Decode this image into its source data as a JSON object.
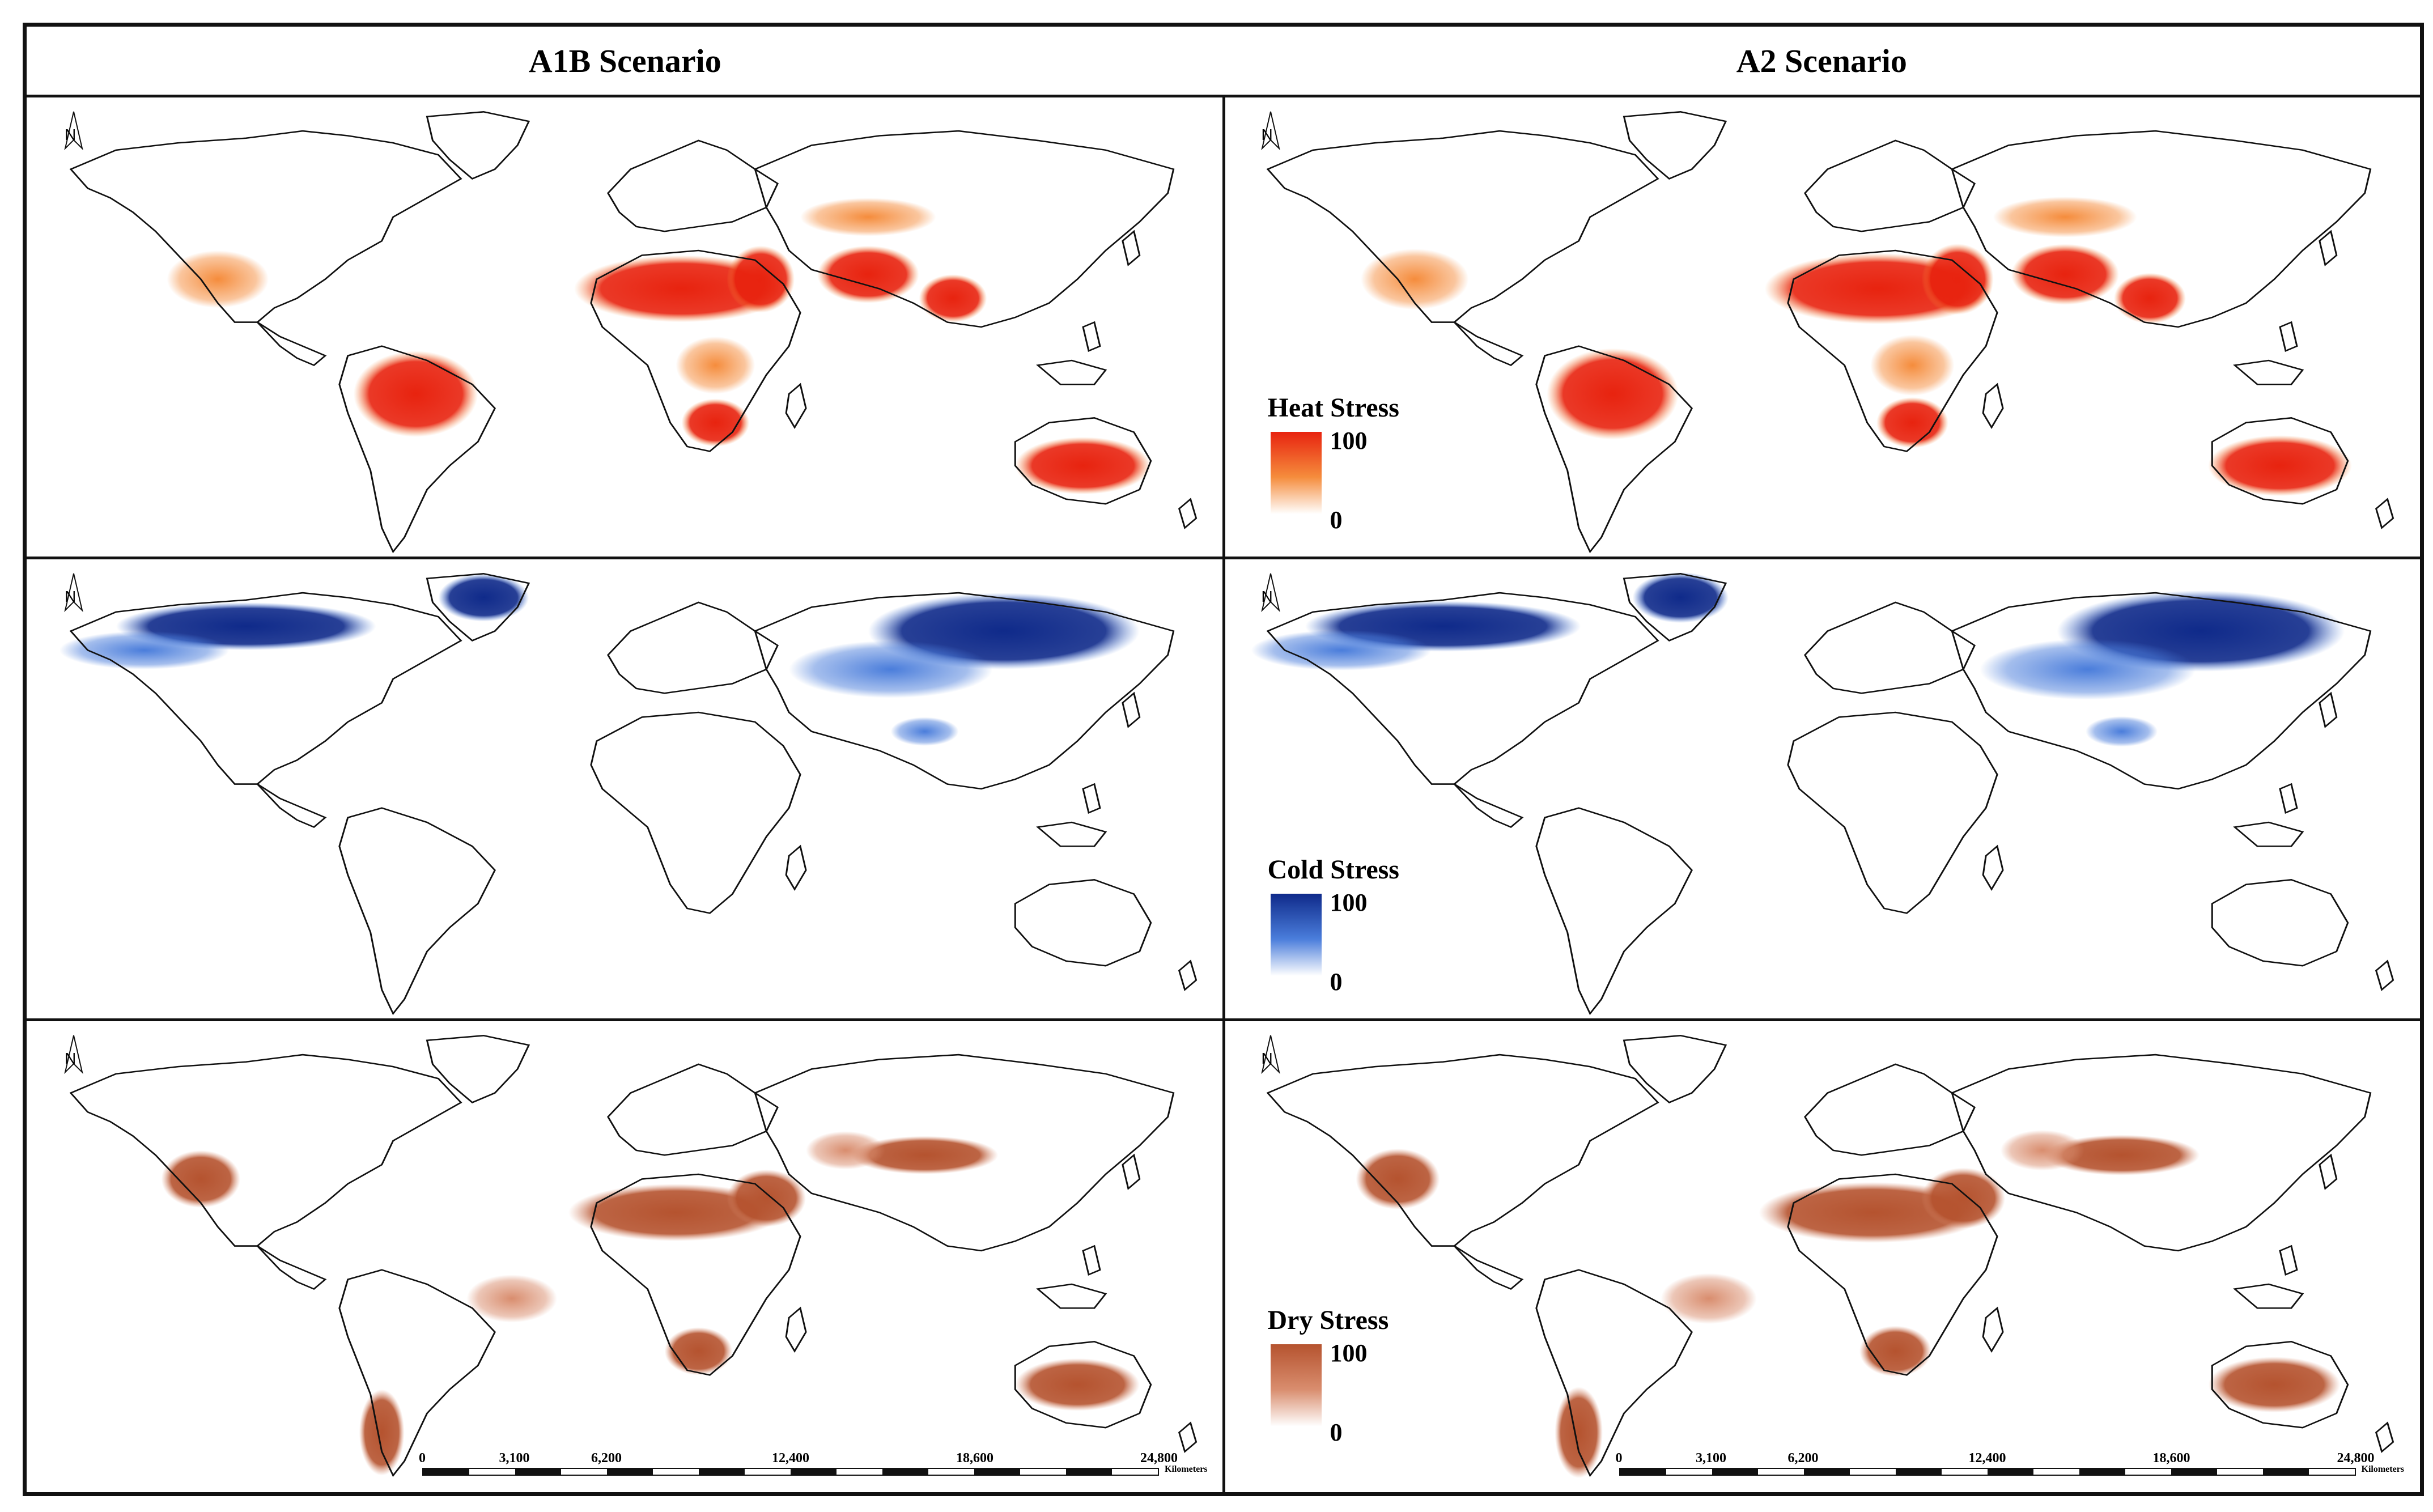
{
  "headers": {
    "left": "A1B Scenario",
    "right": "A2 Scenario"
  },
  "north_arrow_label": "N",
  "legends": {
    "heat": {
      "title": "Heat Stress",
      "max": "100",
      "min": "0",
      "color_high": "#e8230f",
      "color_mid": "#f58c3c",
      "color_low": "#ffffff"
    },
    "cold": {
      "title": "Cold Stress",
      "max": "100",
      "min": "0",
      "color_high": "#0f2a8a",
      "color_mid": "#4a7ddb",
      "color_low": "#ffffff"
    },
    "dry": {
      "title": "Dry Stress",
      "max": "100",
      "min": "0",
      "color_high": "#b5532f",
      "color_mid": "#d98d6e",
      "color_low": "#ffffff"
    }
  },
  "scalebar": {
    "labels": [
      "0",
      "3,100",
      "6,200",
      "12,400",
      "18,600",
      "24,800"
    ],
    "unit": "Kilometers"
  },
  "rows": [
    {
      "stress": "heat",
      "scenario_left": "A1B",
      "scenario_right": "A2"
    },
    {
      "stress": "cold",
      "scenario_left": "A1B",
      "scenario_right": "A2"
    },
    {
      "stress": "dry",
      "scenario_left": "A1B",
      "scenario_right": "A2"
    }
  ]
}
